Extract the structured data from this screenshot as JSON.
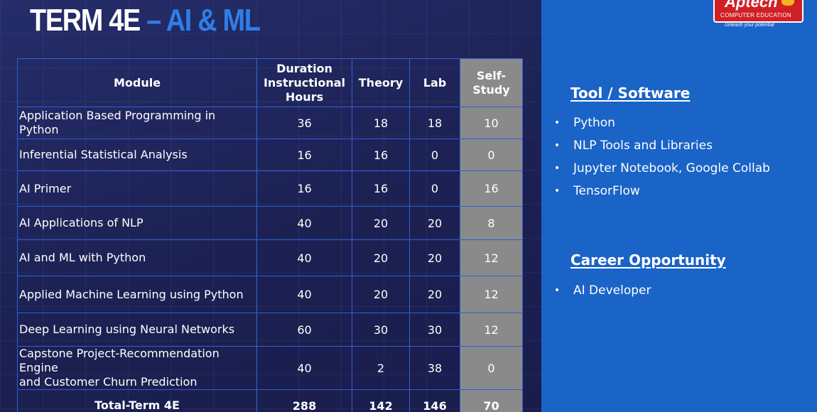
{
  "title": {
    "part1": "TERM 4E",
    "part2": " – AI & ML"
  },
  "logo": {
    "brand": "Aptech",
    "subtitle": "COMPUTER EDUCATION",
    "tagline": "Unleash your potential"
  },
  "table": {
    "headers": {
      "module": "Module",
      "duration_line1": "Duration",
      "duration_line2": "Instructional",
      "duration_line3": "Hours",
      "theory": "Theory",
      "lab": "Lab",
      "self_study": "Self-Study"
    },
    "rows": [
      {
        "module": "Application Based Programming in Python",
        "duration": "36",
        "theory": "18",
        "lab": "18",
        "self_study": "10"
      },
      {
        "module": "Inferential Statistical Analysis",
        "duration": "16",
        "theory": "16",
        "lab": "0",
        "self_study": "0"
      },
      {
        "module": "AI Primer",
        "duration": "16",
        "theory": "16",
        "lab": "0",
        "self_study": "16"
      },
      {
        "module": "AI Applications of NLP",
        "duration": "40",
        "theory": "20",
        "lab": "20",
        "self_study": "8"
      },
      {
        "module": "AI and ML with Python",
        "duration": "40",
        "theory": "20",
        "lab": "20",
        "self_study": "12"
      },
      {
        "module": "Applied Machine Learning using Python",
        "duration": "40",
        "theory": "20",
        "lab": "20",
        "self_study": "12"
      },
      {
        "module": "Deep Learning using Neural Networks",
        "duration": "60",
        "theory": "30",
        "lab": "30",
        "self_study": "12"
      },
      {
        "module_line1": "Capstone Project-Recommendation Engine",
        "module_line2": "and Customer Churn Prediction",
        "duration": "40",
        "theory": "2",
        "lab": "38",
        "self_study": "0"
      }
    ],
    "total": {
      "label": "Total-Term 4E",
      "duration": "288",
      "theory": "142",
      "lab": "146",
      "self_study": "70"
    }
  },
  "tools": {
    "heading": "Tool / Software",
    "items": [
      "Python",
      "NLP Tools and Libraries",
      "Jupyter Notebook, Google Collab",
      "TensorFlow"
    ]
  },
  "career": {
    "heading": "Career Opportunity",
    "items": [
      "AI Developer"
    ]
  },
  "bullet_glyph": "•",
  "colors": {
    "left_bg": "#1e2556",
    "right_bg": "#1a63c7",
    "title_accent": "#2f7ee8",
    "table_border": "#2f5fd6",
    "self_study_bg": "#8a8a8a",
    "logo_red": "#d11f26"
  }
}
